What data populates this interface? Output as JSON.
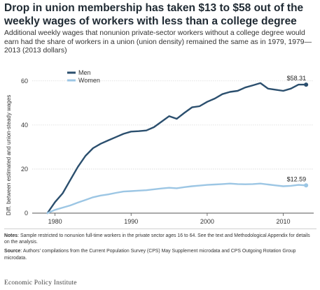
{
  "header": {
    "title": "Drop in union membership has taken $13 to $58 out of the weekly wages of workers with less than a college degree",
    "subtitle": "Additional weekly wages that nonunion private-sector workers without a college degree would earn had the share of workers in a union (union density) remained the same as in 1979, 1979—2013 (2013 dollars)"
  },
  "notes": {
    "notes_label": "Notes",
    "notes_text": ": Sample restricted to nonunion full-time workers in the private sector ages 16 to 64. See the text and Methodological Appendix for details on the analysis.",
    "source_label": "Source",
    "source_text": ": Authors' compilations from the Current Population Survey (CPS) May Supplement microdata and CPS Outgoing Rotation Group microdata."
  },
  "brand": {
    "name": "Economic Policy Institute"
  },
  "colors": {
    "men": "#2b4f6e",
    "women": "#9cc6e4",
    "grid": "#d9d9d9",
    "axis": "#555555"
  },
  "chart_data": {
    "type": "line",
    "title": "Drop in union membership has taken $13 to $58 out of the weekly wages of workers with less than a college degree",
    "xlabel": "",
    "ylabel": "Diff. between estimated and union-steady wages",
    "xlim": [
      1977,
      2014
    ],
    "ylim": [
      0,
      65
    ],
    "x_ticks": [
      1980,
      1990,
      2000,
      2010
    ],
    "y_ticks": [
      0,
      20,
      40,
      60
    ],
    "grid": true,
    "legend_position": "top-right",
    "x": [
      1979,
      1980,
      1981,
      1982,
      1983,
      1984,
      1985,
      1986,
      1987,
      1988,
      1989,
      1990,
      1991,
      1992,
      1993,
      1994,
      1995,
      1996,
      1997,
      1998,
      1999,
      2000,
      2001,
      2002,
      2003,
      2004,
      2005,
      2006,
      2007,
      2008,
      2009,
      2010,
      2011,
      2012,
      2013
    ],
    "series": [
      {
        "name": "Men",
        "color": "#2b4f6e",
        "values": [
          0,
          5,
          9,
          15,
          21,
          26,
          29.5,
          31.5,
          33,
          34.5,
          36,
          37,
          37.2,
          37.5,
          39,
          41.5,
          44,
          42.8,
          45.5,
          48,
          48.5,
          50.5,
          52,
          54,
          55,
          55.5,
          57,
          58,
          59,
          56.5,
          56,
          55.5,
          56.5,
          58.3,
          58.31
        ],
        "end_label": "$58.31"
      },
      {
        "name": "Women",
        "color": "#9cc6e4",
        "values": [
          0,
          1.5,
          2.5,
          3.5,
          4.8,
          6,
          7.2,
          8,
          8.5,
          9.2,
          9.8,
          10,
          10.2,
          10.4,
          10.8,
          11.2,
          11.5,
          11.3,
          11.8,
          12.2,
          12.5,
          12.8,
          13,
          13.2,
          13.4,
          13.2,
          13.1,
          13.2,
          13.4,
          13,
          12.6,
          12.2,
          12.4,
          12.8,
          12.59
        ],
        "end_label": "$12.59"
      }
    ]
  }
}
